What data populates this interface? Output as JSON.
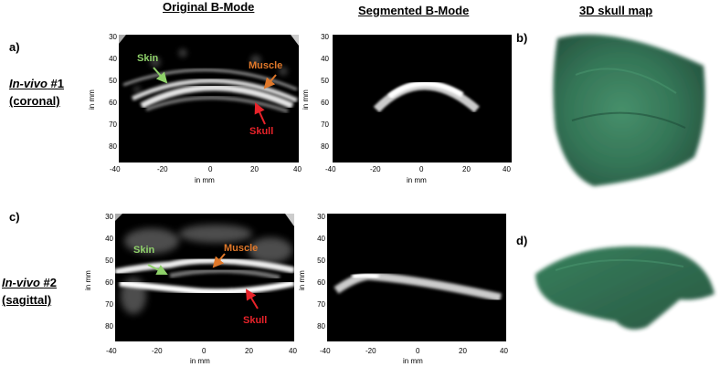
{
  "columns": {
    "original": "Original B-Mode",
    "segmented": "Segmented B-Mode",
    "map3d": "3D skull map"
  },
  "panels": {
    "a": "a)",
    "b": "b)",
    "c": "c)",
    "d": "d)"
  },
  "cases": [
    {
      "prefix": "In-vivo",
      "number": "#1",
      "plane": "(coronal)"
    },
    {
      "prefix": "In-vivo",
      "number": "#2",
      "plane": "(sagittal)"
    }
  ],
  "axes": {
    "unit_label": "in mm",
    "y_ticks": [
      "30",
      "40",
      "50",
      "60",
      "70",
      "80"
    ],
    "x_ticks": [
      "-40",
      "-20",
      "0",
      "20",
      "40"
    ]
  },
  "annotations": {
    "skin": "Skin",
    "muscle": "Muscle",
    "skull": "Skull"
  },
  "colors": {
    "skin": "#8fd16a",
    "muscle": "#e0782a",
    "skull": "#e8232a",
    "skull_map": "#2a6e4e"
  }
}
